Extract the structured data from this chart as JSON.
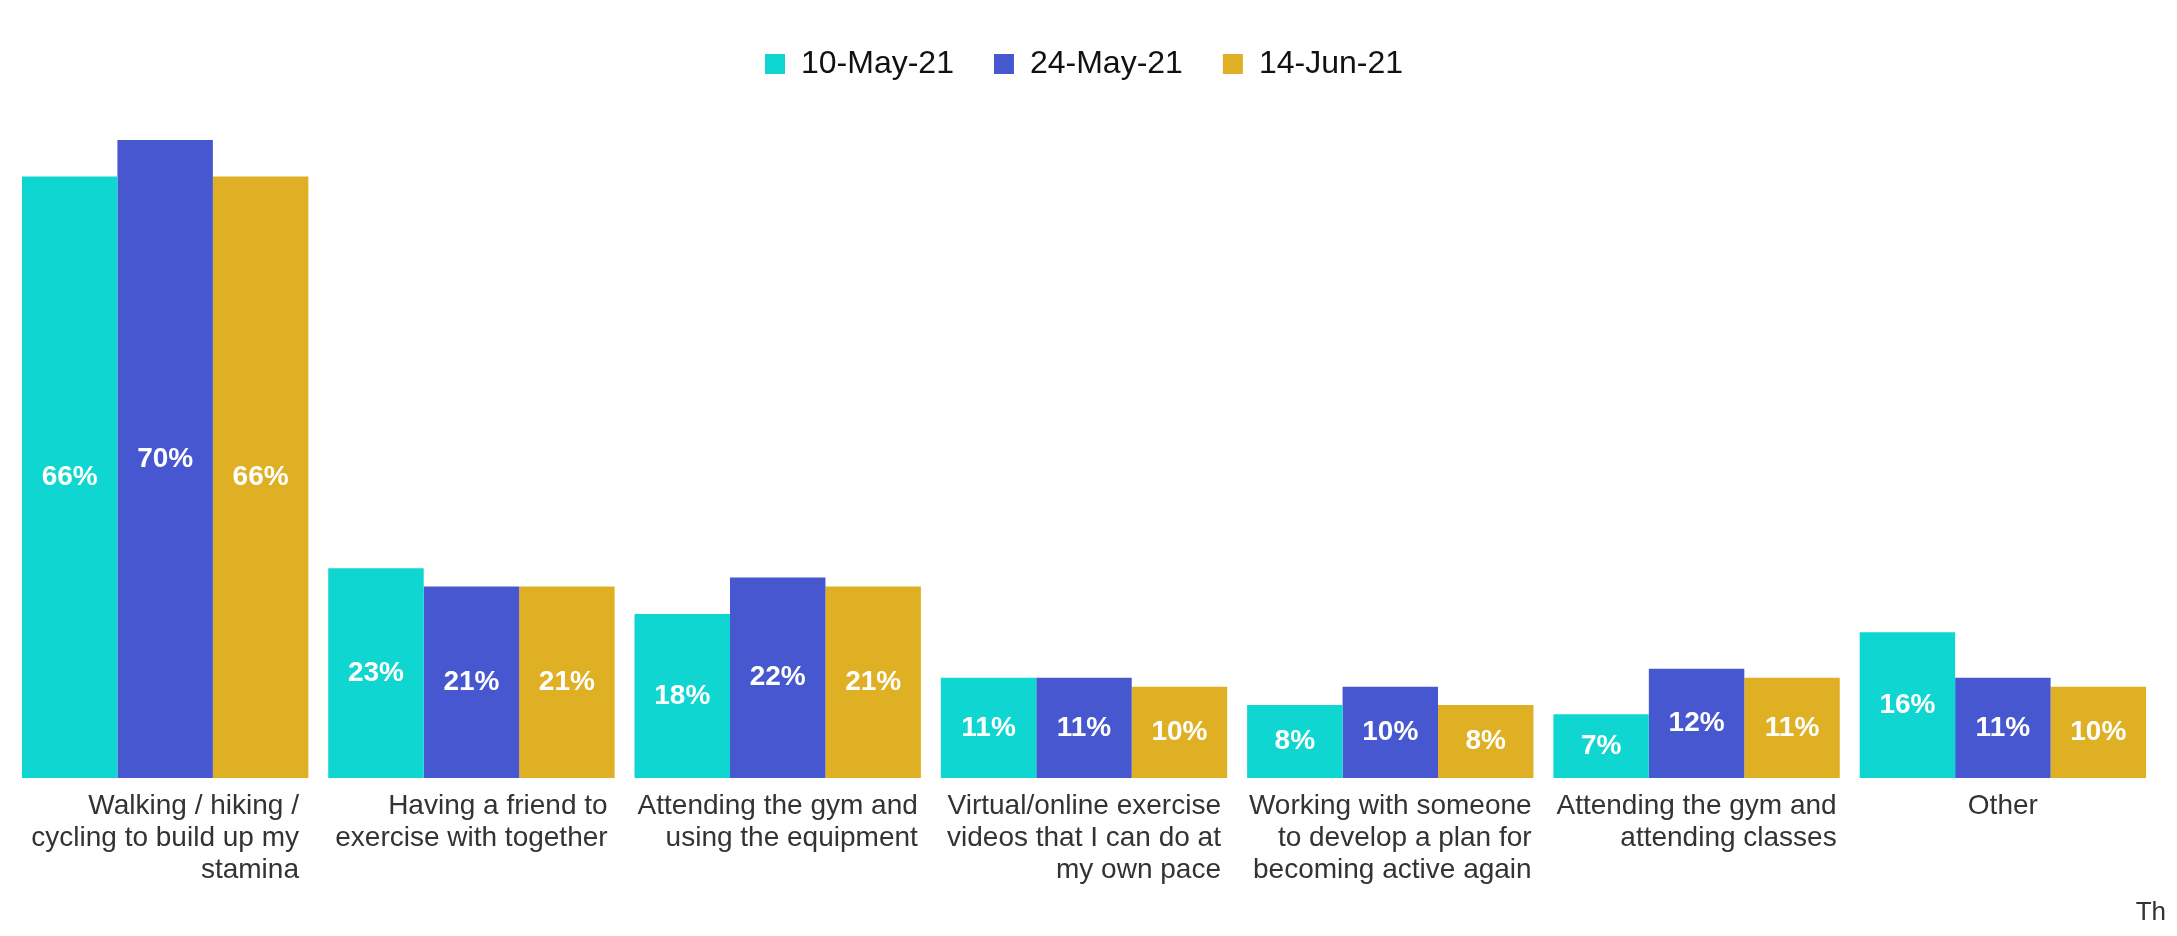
{
  "chart_data": {
    "type": "bar",
    "categories": [
      "Walking / hiking / cycling to build up my stamina",
      "Having a friend to exercise with together",
      "Attending the gym and using the equipment",
      "Virtual/online exercise videos that I can do at my own pace",
      "Working with someone to develop a plan for becoming active again",
      "Attending the gym and attending classes",
      "Other"
    ],
    "series": [
      {
        "name": "10-May-21",
        "color": "#0fd6d0",
        "values": [
          66,
          23,
          18,
          11,
          8,
          7,
          16
        ],
        "value_labels": [
          "66%",
          "23%",
          "18%",
          "11%",
          "8%",
          "7%",
          "16%"
        ]
      },
      {
        "name": "24-May-21",
        "color": "#4657d0",
        "values": [
          70,
          21,
          22,
          11,
          10,
          12,
          11
        ],
        "value_labels": [
          "70%",
          "21%",
          "22%",
          "11%",
          "10%",
          "12%",
          "11%"
        ]
      },
      {
        "name": "14-Jun-21",
        "color": "#e0b024",
        "values": [
          66,
          21,
          21,
          10,
          8,
          11,
          10
        ],
        "value_labels": [
          "66%",
          "21%",
          "21%",
          "10%",
          "8%",
          "11%",
          "10%"
        ]
      }
    ],
    "tick_labels": "x",
    "legend": "top",
    "grid": false,
    "annotations": [
      "Th"
    ]
  }
}
